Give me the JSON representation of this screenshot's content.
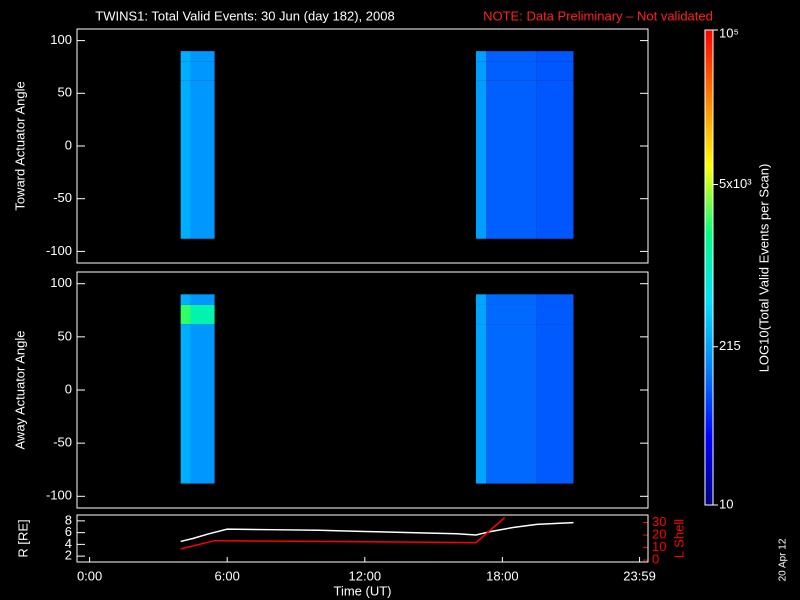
{
  "title": "TWINS1: Total Valid Events: 30 Jun (day 182), 2008",
  "note": "NOTE: Data Preliminary – Not validated",
  "stamp": "20 Apr 12",
  "chart_data": [
    {
      "type": "heatmap",
      "ylabel": "Toward Actuator Angle",
      "xlim": [
        -0.55,
        24.35
      ],
      "ylim": [
        -111,
        111
      ],
      "yticks": [
        -100,
        -50,
        0,
        50,
        100
      ],
      "xbins": [
        3.97,
        4.4,
        5.45,
        16.85,
        17.3,
        19.5,
        21.1
      ],
      "ybins": [
        -88,
        62,
        80,
        90
      ],
      "values": [
        [
          260,
          190,
          null,
          210,
          100,
          90
        ],
        [
          260,
          190,
          null,
          210,
          100,
          90
        ],
        [
          260,
          190,
          null,
          210,
          100,
          90
        ]
      ]
    },
    {
      "type": "heatmap",
      "ylabel": "Away Actuator Angle",
      "xlim": [
        -0.55,
        24.35
      ],
      "ylim": [
        -111,
        111
      ],
      "yticks": [
        -100,
        -50,
        0,
        50,
        100
      ],
      "xbins": [
        3.97,
        4.4,
        5.45,
        16.85,
        17.3,
        19.5,
        21.1
      ],
      "ybins": [
        -88,
        62,
        80,
        90
      ],
      "values": [
        [
          260,
          190,
          null,
          230,
          110,
          95
        ],
        [
          2500,
          1200,
          null,
          230,
          110,
          95
        ],
        [
          260,
          190,
          null,
          230,
          110,
          95
        ]
      ]
    },
    {
      "type": "line",
      "xlabel": "Time (UT)",
      "ylabel": "R [RE]",
      "y2label": "L Shell",
      "xlim": [
        -0.55,
        24.35
      ],
      "xticks": [
        {
          "value": 0,
          "label": "0:00"
        },
        {
          "value": 6,
          "label": "6:00"
        },
        {
          "value": 12,
          "label": "12:00"
        },
        {
          "value": 18,
          "label": "18:00"
        },
        {
          "value": 23.983,
          "label": "23:59"
        }
      ],
      "ylim": [
        1,
        9
      ],
      "yticks": [
        2,
        4,
        6,
        8
      ],
      "y2lim": [
        -1.5,
        36
      ],
      "y2ticks": [
        0,
        10,
        20,
        30
      ],
      "series": [
        {
          "color": "#ffffff",
          "x": [
            3.97,
            4.5,
            5.2,
            6,
            8,
            10,
            12,
            14,
            16,
            16.85,
            17.5,
            18.5,
            19.5,
            20.5,
            21.1
          ],
          "values": [
            4.5,
            5.0,
            5.8,
            6.6,
            6.5,
            6.4,
            6.2,
            6.0,
            5.8,
            5.6,
            6.2,
            6.9,
            7.4,
            7.6,
            7.7
          ]
        },
        {
          "color": "#ff0000",
          "axis": "y2",
          "x": [
            3.97,
            5.45,
            16.85,
            18.1
          ],
          "values": [
            9,
            15.5,
            14,
            34
          ]
        }
      ]
    }
  ],
  "colorbar": {
    "label": "LOG10(Total Valid Events per Scan)",
    "log": true,
    "zlim": [
      10,
      100000
    ],
    "zticks": [
      10,
      215,
      {
        "value": 5000,
        "label": "5x10³"
      },
      {
        "value": 100000,
        "label": "10⁵"
      }
    ],
    "colormap": [
      "#000080",
      "#0000ff",
      "#0080ff",
      "#00e0ff",
      "#00ff80",
      "#ffff00",
      "#ff8000",
      "#ff0000"
    ]
  }
}
